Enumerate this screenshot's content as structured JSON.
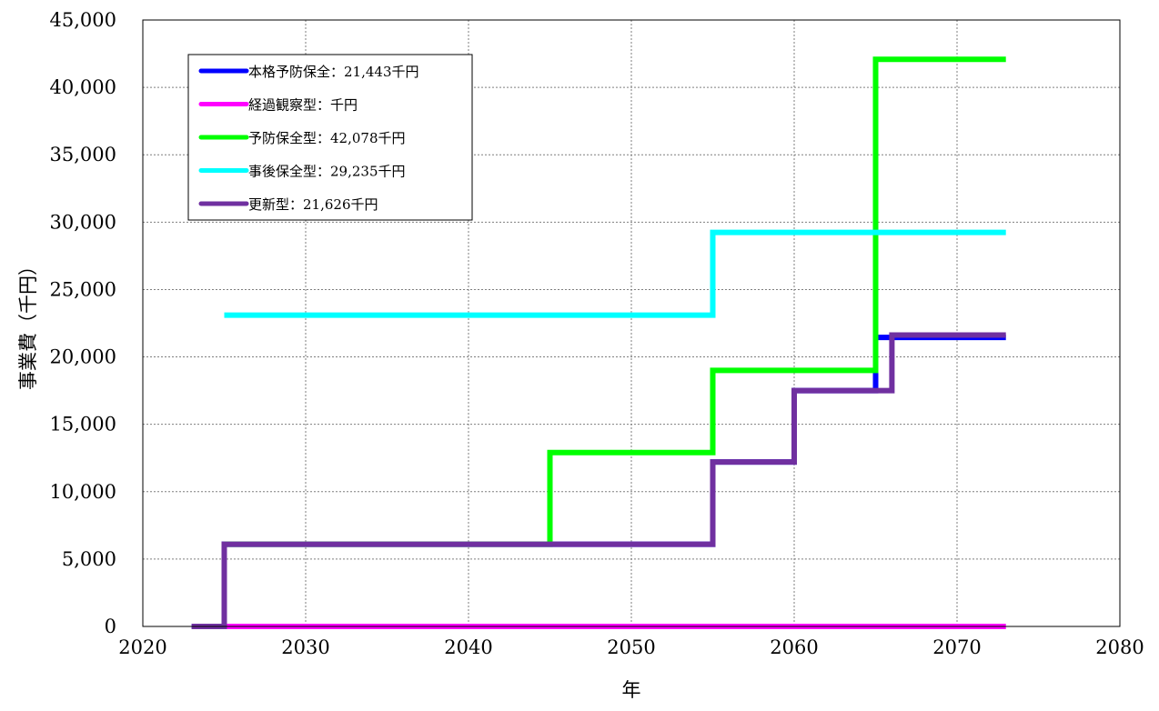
{
  "chart_data": {
    "type": "line",
    "xlabel": "年",
    "ylabel": "事業費（千円）",
    "xlim": [
      2020,
      2080
    ],
    "ylim": [
      0,
      45000
    ],
    "x_ticks": [
      2020,
      2030,
      2040,
      2050,
      2060,
      2070,
      2080
    ],
    "y_ticks": [
      0,
      5000,
      10000,
      15000,
      20000,
      25000,
      30000,
      35000,
      40000,
      45000
    ],
    "x_tick_labels": [
      "2020",
      "2030",
      "2040",
      "2050",
      "2060",
      "2070",
      "2080"
    ],
    "y_tick_labels": [
      "0",
      "5,000",
      "10,000",
      "15,000",
      "20,000",
      "25,000",
      "30,000",
      "35,000",
      "40,000",
      "45,000"
    ],
    "grid": true,
    "legend_position": "top-left",
    "step": "post",
    "series": [
      {
        "name": "本格予防保全",
        "legend": "本格予防保全：21,443千円",
        "color": "#0000ff",
        "x": [
          2023,
          2025,
          2055,
          2060,
          2065,
          2073
        ],
        "y": [
          0,
          6100,
          12200,
          17500,
          21443,
          21443
        ]
      },
      {
        "name": "経過観察型",
        "legend": "経過観察型：千円",
        "color": "#ff00ff",
        "x": [
          2025,
          2073
        ],
        "y": [
          0,
          0
        ]
      },
      {
        "name": "予防保全型",
        "legend": "予防保全型：42,078千円",
        "color": "#00ff00",
        "x": [
          2025,
          2045,
          2055,
          2065,
          2073
        ],
        "y": [
          6100,
          12900,
          19000,
          42078,
          42078
        ]
      },
      {
        "name": "事後保全型",
        "legend": "事後保全型：29,235千円",
        "color": "#00ffff",
        "x": [
          2025,
          2055,
          2073
        ],
        "y": [
          23100,
          29235,
          29235
        ]
      },
      {
        "name": "更新型",
        "legend": "更新型：21,626千円",
        "color": "#7030a0",
        "x": [
          2023,
          2025,
          2055,
          2060,
          2066,
          2073
        ],
        "y": [
          0,
          6100,
          12200,
          17500,
          21626,
          21626
        ]
      }
    ]
  }
}
